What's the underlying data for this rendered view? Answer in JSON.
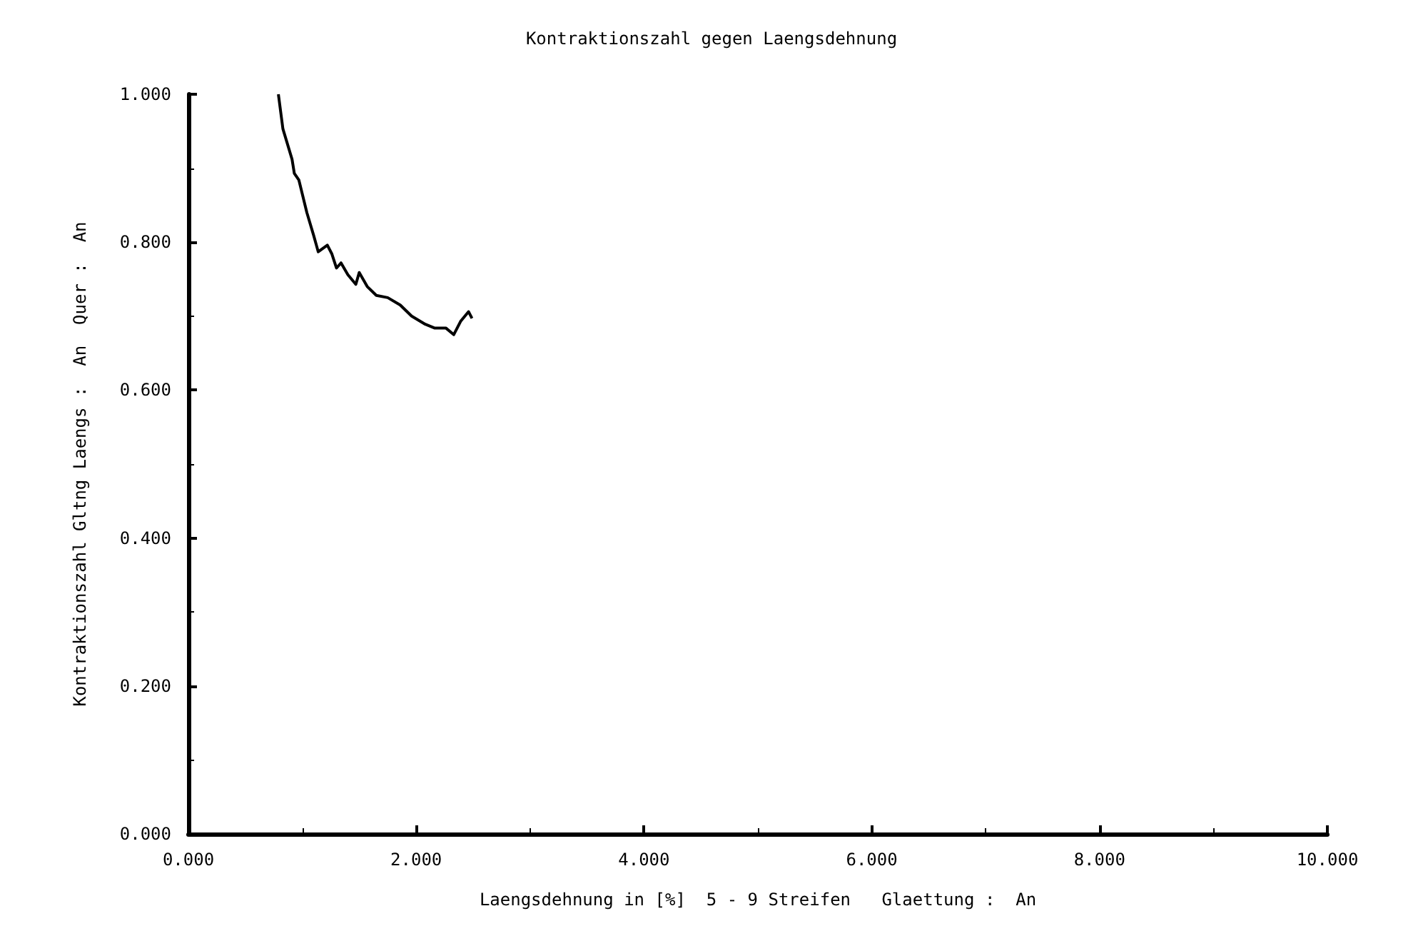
{
  "chart_data": {
    "type": "line",
    "title": "Kontraktionszahl gegen Laengsdehnung",
    "xlabel": "Laengsdehnung in [%]  5 - 9 Streifen   Glaettung :  An",
    "ylabel": "Kontraktionszahl Gltng Laengs :  An  Quer :  An",
    "x": [
      0.79,
      0.83,
      0.91,
      0.93,
      0.97,
      1.04,
      1.1,
      1.14,
      1.22,
      1.26,
      1.3,
      1.34,
      1.4,
      1.47,
      1.5,
      1.57,
      1.65,
      1.75,
      1.86,
      1.96,
      2.08,
      2.16,
      2.26,
      2.33,
      2.39,
      2.46,
      2.49
    ],
    "series": [
      {
        "color": "#000000",
        "values": [
          1.0,
          0.953,
          0.912,
          0.893,
          0.884,
          0.84,
          0.809,
          0.787,
          0.796,
          0.784,
          0.765,
          0.772,
          0.756,
          0.743,
          0.759,
          0.74,
          0.728,
          0.725,
          0.715,
          0.7,
          0.689,
          0.684,
          0.684,
          0.675,
          0.693,
          0.706,
          0.697
        ]
      }
    ],
    "xlim": [
      0,
      10
    ],
    "xticks": [
      {
        "value": 0,
        "label": "0.000"
      },
      {
        "value": 2,
        "label": "2.000"
      },
      {
        "value": 4,
        "label": "4.000"
      },
      {
        "value": 6,
        "label": "6.000"
      },
      {
        "value": 8,
        "label": "8.000"
      },
      {
        "value": 10,
        "label": "10.000"
      }
    ],
    "ylim": [
      0,
      1
    ],
    "yticks": [
      {
        "value": 0,
        "label": "0.000"
      },
      {
        "value": 0.2,
        "label": "0.200"
      },
      {
        "value": 0.4,
        "label": "0.400"
      },
      {
        "value": 0.6,
        "label": "0.600"
      },
      {
        "value": 0.8,
        "label": "0.800"
      },
      {
        "value": 1,
        "label": "1.000"
      }
    ],
    "grid": false,
    "marker": "none",
    "line_style": "solid"
  }
}
